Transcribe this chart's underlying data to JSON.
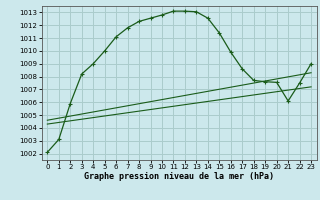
{
  "xlabel": "Graphe pression niveau de la mer (hPa)",
  "bg_color": "#cce8ec",
  "grid_color": "#aacccc",
  "line_color": "#1a5c1a",
  "ylim": [
    1001.5,
    1013.5
  ],
  "xlim": [
    -0.5,
    23.5
  ],
  "yticks": [
    1002,
    1003,
    1004,
    1005,
    1006,
    1007,
    1008,
    1009,
    1010,
    1011,
    1012,
    1013
  ],
  "xticks": [
    0,
    1,
    2,
    3,
    4,
    5,
    6,
    7,
    8,
    9,
    10,
    11,
    12,
    13,
    14,
    15,
    16,
    17,
    18,
    19,
    20,
    21,
    22,
    23
  ],
  "series1": {
    "x": [
      0,
      1,
      2,
      3,
      4,
      5,
      6,
      7,
      8,
      9,
      10,
      11,
      12,
      13,
      14,
      15,
      16,
      17,
      18,
      19,
      20,
      21,
      22,
      23
    ],
    "y": [
      1002.1,
      1003.1,
      1005.9,
      1008.2,
      1009.0,
      1010.0,
      1011.1,
      1011.8,
      1012.3,
      1012.55,
      1012.8,
      1013.1,
      1013.1,
      1013.05,
      1012.55,
      1011.4,
      1009.9,
      1008.6,
      1007.7,
      1007.6,
      1007.55,
      1006.1,
      1007.5,
      1009.0
    ]
  },
  "series2": {
    "x": [
      0,
      23
    ],
    "y": [
      1004.3,
      1007.2
    ]
  },
  "series3": {
    "x": [
      0,
      23
    ],
    "y": [
      1004.6,
      1008.3
    ]
  }
}
